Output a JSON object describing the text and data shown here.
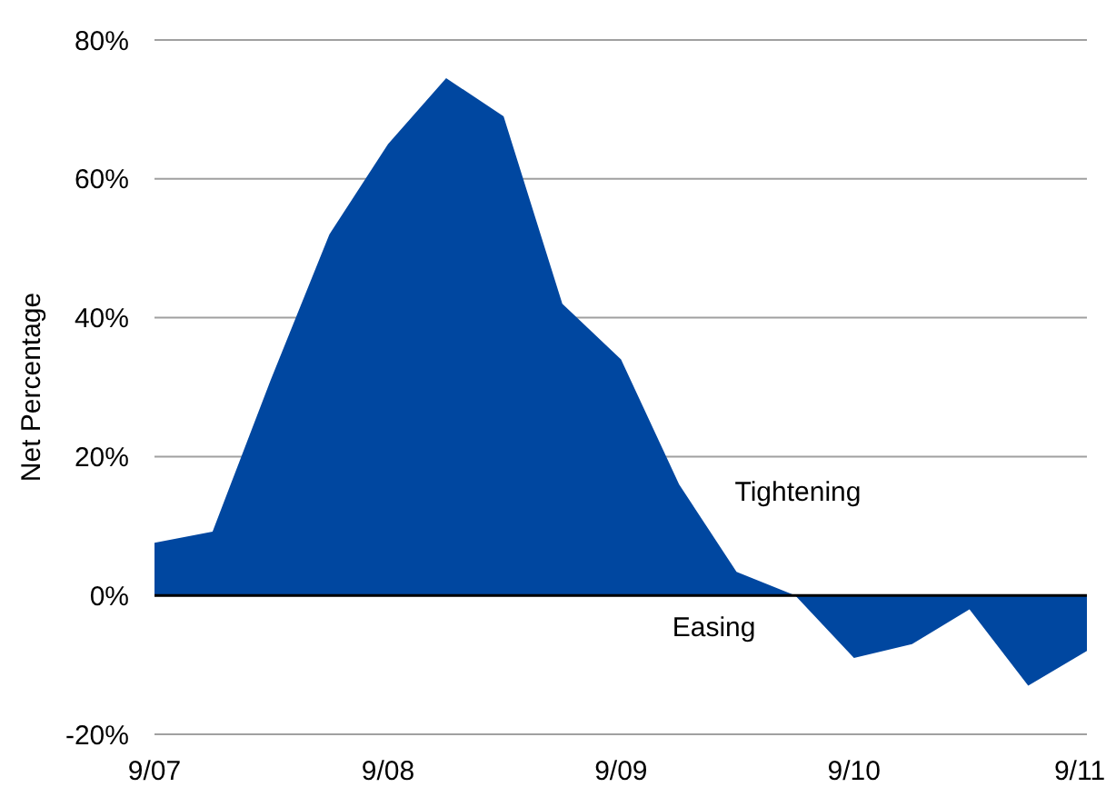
{
  "chart_data": {
    "type": "area",
    "ylabel": "Net Percentage",
    "x": [
      "2007-09",
      "2007-12",
      "2008-03",
      "2008-06",
      "2008-09",
      "2008-12",
      "2009-03",
      "2009-06",
      "2009-09",
      "2009-12",
      "2010-03",
      "2010-06",
      "2010-09",
      "2010-12",
      "2011-03",
      "2011-06",
      "2011-09"
    ],
    "series": [
      {
        "color": "#0047a0",
        "values": [
          7.6,
          9.2,
          31,
          52,
          65,
          74.5,
          69,
          42,
          34,
          16,
          3.4,
          0,
          -9,
          -7,
          -2,
          -13,
          -8
        ]
      }
    ],
    "xlim": [
      "2007-09",
      "2011-09"
    ],
    "xticks": [
      {
        "value": "2007-09",
        "label": "9/07"
      },
      {
        "value": "2008-09",
        "label": "9/08"
      },
      {
        "value": "2009-09",
        "label": "9/09"
      },
      {
        "value": "2010-09",
        "label": "9/10"
      },
      {
        "value": "2011-09",
        "label": "9/11"
      }
    ],
    "ylim": [
      -20,
      80
    ],
    "yticks": [
      {
        "value": -20,
        "label": "-20%"
      },
      {
        "value": 0,
        "label": "0%"
      },
      {
        "value": 20,
        "label": "20%"
      },
      {
        "value": 40,
        "label": "40%"
      },
      {
        "value": 60,
        "label": "60%"
      },
      {
        "value": 80,
        "label": "80%"
      }
    ],
    "grid": "y",
    "annotations": [
      "Tightening",
      "Easing"
    ]
  }
}
